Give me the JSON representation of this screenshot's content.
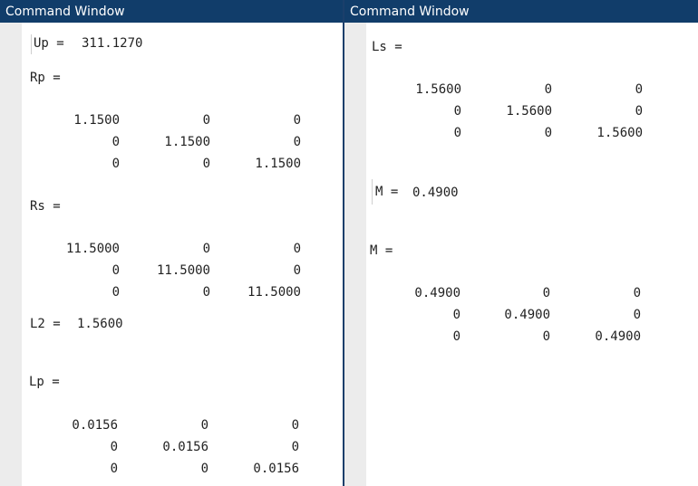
{
  "left": {
    "title": "Command Window",
    "blocks": {
      "up": {
        "label": "Up =",
        "value": "311.1270"
      },
      "rp": {
        "label": "Rp =",
        "rows": [
          [
            "1.1500",
            "0",
            "0"
          ],
          [
            "0",
            "1.1500",
            "0"
          ],
          [
            "0",
            "0",
            "1.1500"
          ]
        ]
      },
      "rs": {
        "label": "Rs =",
        "rows": [
          [
            "11.5000",
            "0",
            "0"
          ],
          [
            "0",
            "11.5000",
            "0"
          ],
          [
            "0",
            "0",
            "11.5000"
          ]
        ]
      },
      "l2": {
        "label": "L2 =",
        "value": "1.5600"
      },
      "lp": {
        "label": "Lp =",
        "rows": [
          [
            "0.0156",
            "0",
            "0"
          ],
          [
            "0",
            "0.0156",
            "0"
          ],
          [
            "0",
            "0",
            "0.0156"
          ]
        ]
      }
    }
  },
  "right": {
    "title": "Command Window",
    "blocks": {
      "ls": {
        "label": "Ls =",
        "rows": [
          [
            "1.5600",
            "0",
            "0"
          ],
          [
            "0",
            "1.5600",
            "0"
          ],
          [
            "0",
            "0",
            "1.5600"
          ]
        ]
      },
      "m_scalar": {
        "label": "M =",
        "value": "0.4900"
      },
      "m_matrix": {
        "label": "M =",
        "rows": [
          [
            "0.4900",
            "0",
            "0"
          ],
          [
            "0",
            "0.4900",
            "0"
          ],
          [
            "0",
            "0",
            "0.4900"
          ]
        ]
      }
    }
  }
}
